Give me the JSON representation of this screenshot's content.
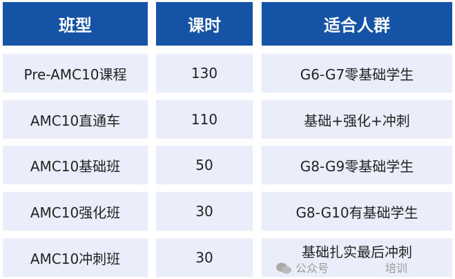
{
  "table": {
    "headers": [
      "班型",
      "课时",
      "适合人群"
    ],
    "rows": [
      [
        "Pre-AMC10课程",
        "130",
        "G6-G7零基础学生"
      ],
      [
        "AMC10直通车",
        "110",
        "基础+强化+冲刺"
      ],
      [
        "AMC10基础班",
        "50",
        "G8-G9零基础学生"
      ],
      [
        "AMC10强化班",
        "30",
        "G8-G10有基础学生"
      ],
      [
        "AMC10冲刺班",
        "30",
        "基础扎实最后冲刺"
      ]
    ]
  },
  "watermark": {
    "icon": "wechat-icon",
    "prefix": "公众号",
    "suffix": "培训"
  },
  "colors": {
    "header": "#1553a6",
    "row": "#e9eefa"
  }
}
